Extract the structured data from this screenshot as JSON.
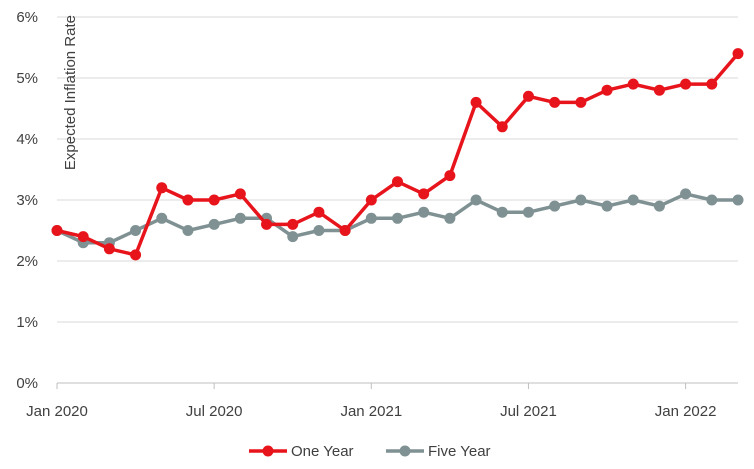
{
  "chart_data": {
    "type": "line",
    "title": "",
    "xlabel": "",
    "ylabel": "Expected Inflation Rate",
    "ylim": [
      0,
      6
    ],
    "yticks": [
      "0%",
      "1%",
      "2%",
      "3%",
      "4%",
      "5%",
      "6%"
    ],
    "xticks": [
      "Jan 2020",
      "Jul 2020",
      "Jan 2021",
      "Jul 2021",
      "Jan 2022"
    ],
    "x": [
      "Jan 2020",
      "Feb 2020",
      "Mar 2020",
      "Apr 2020",
      "May 2020",
      "Jun 2020",
      "Jul 2020",
      "Aug 2020",
      "Sep 2020",
      "Oct 2020",
      "Nov 2020",
      "Dec 2020",
      "Jan 2021",
      "Feb 2021",
      "Mar 2021",
      "Apr 2021",
      "May 2021",
      "Jun 2021",
      "Jul 2021",
      "Aug 2021",
      "Sep 2021",
      "Oct 2021",
      "Nov 2021",
      "Dec 2021",
      "Jan 2022",
      "Feb 2022",
      "Mar 2022"
    ],
    "grid": true,
    "legend_position": "bottom",
    "series": [
      {
        "name": "One Year",
        "color": "#e8141c",
        "values": [
          2.5,
          2.4,
          2.2,
          2.1,
          3.2,
          3.0,
          3.0,
          3.1,
          2.6,
          2.6,
          2.8,
          2.5,
          3.0,
          3.3,
          3.1,
          3.4,
          4.6,
          4.2,
          4.7,
          4.6,
          4.6,
          4.8,
          4.9,
          4.8,
          4.9,
          4.9,
          5.4
        ]
      },
      {
        "name": "Five Year",
        "color": "#7f9193",
        "values": [
          2.5,
          2.3,
          2.3,
          2.5,
          2.7,
          2.5,
          2.6,
          2.7,
          2.7,
          2.4,
          2.5,
          2.5,
          2.7,
          2.7,
          2.8,
          2.7,
          3.0,
          2.8,
          2.8,
          2.9,
          3.0,
          2.9,
          3.0,
          2.9,
          3.1,
          3.0,
          3.0
        ]
      }
    ]
  }
}
